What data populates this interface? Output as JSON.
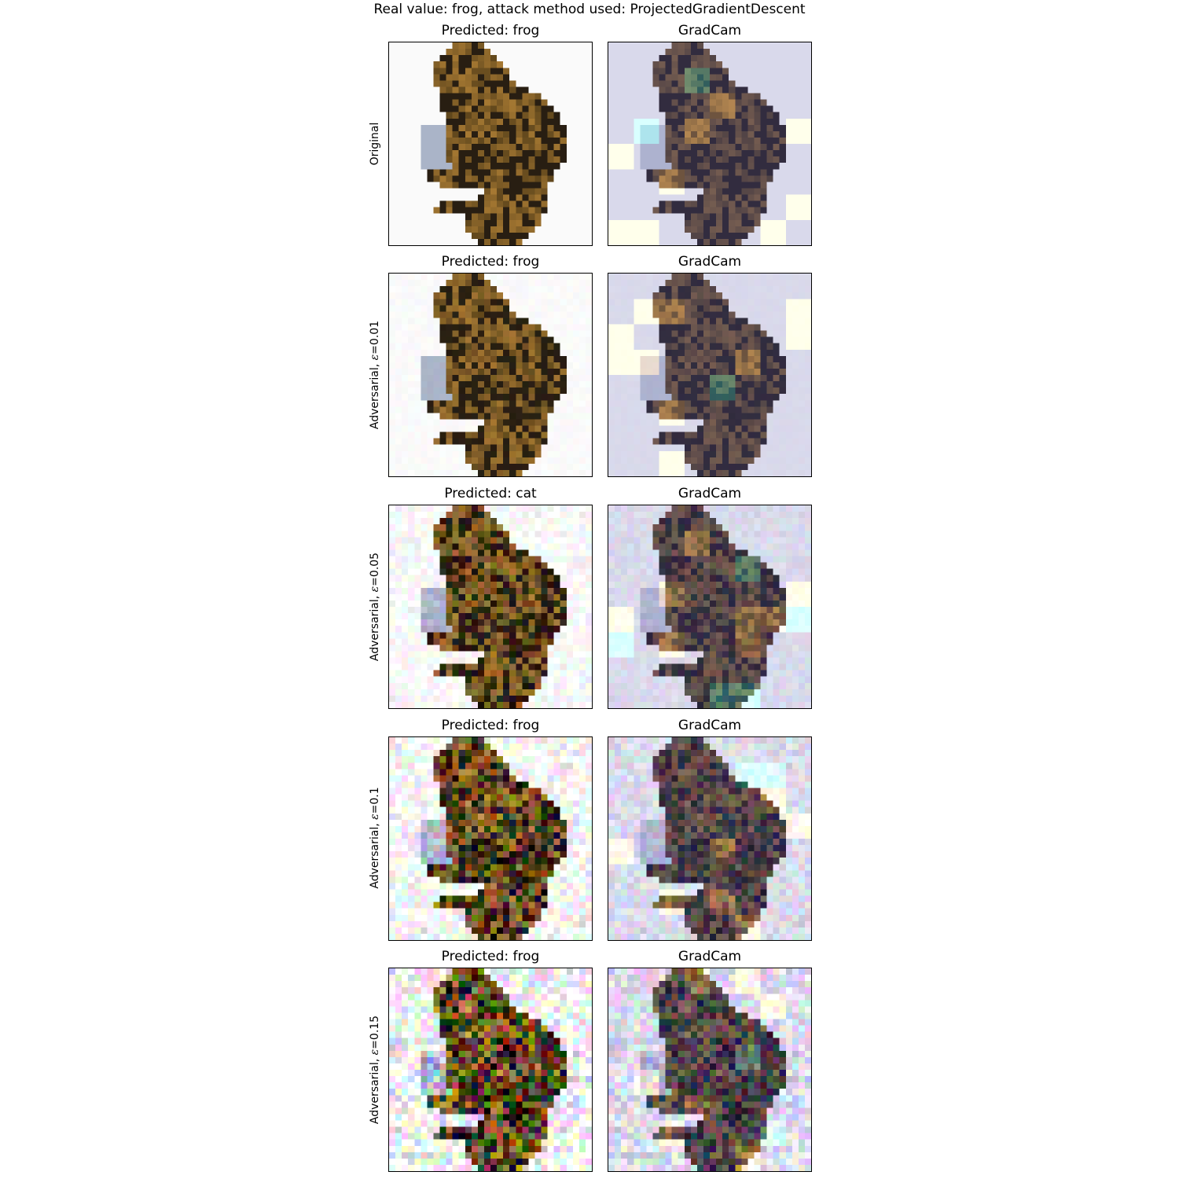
{
  "suptitle": "Real value: frog, attack method used: ProjectedGradientDescent",
  "rows": [
    {
      "label_prefix": "Original",
      "label_eps": "",
      "label_suffix": "",
      "pred": "Predicted: frog",
      "cam": "GradCam",
      "noise": 0.0
    },
    {
      "label_prefix": "Adversarial, ",
      "label_eps": "ε",
      "label_suffix": "=0.01",
      "pred": "Predicted: frog",
      "cam": "GradCam",
      "noise": 0.01
    },
    {
      "label_prefix": "Adversarial, ",
      "label_eps": "ε",
      "label_suffix": "=0.05",
      "pred": "Predicted: cat",
      "cam": "GradCam",
      "noise": 0.05
    },
    {
      "label_prefix": "Adversarial, ",
      "label_eps": "ε",
      "label_suffix": "=0.1",
      "pred": "Predicted: frog",
      "cam": "GradCam",
      "noise": 0.1
    },
    {
      "label_prefix": "Adversarial, ",
      "label_eps": "ε",
      "label_suffix": "=0.15",
      "pred": "Predicted: frog",
      "cam": "GradCam",
      "noise": 0.15
    }
  ],
  "colors": {
    "frog_dark": "#3a2a14",
    "frog_light": "#8a6a32",
    "background": "#ffffff",
    "cam_tint": "#b0b0d8"
  }
}
